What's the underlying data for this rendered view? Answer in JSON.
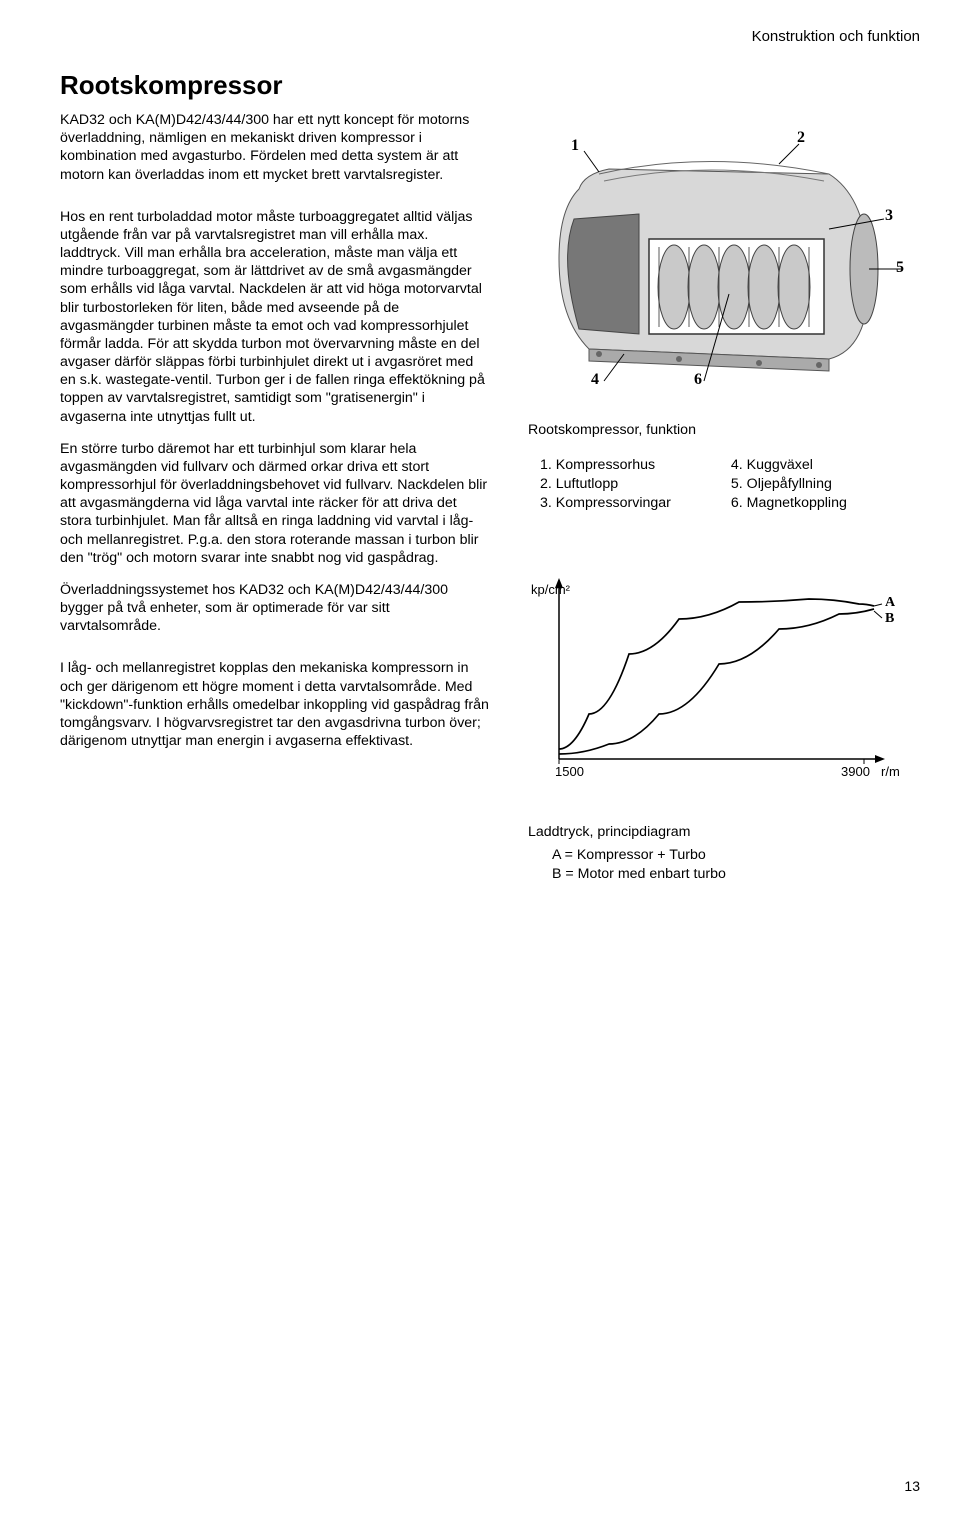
{
  "header": {
    "section": "Konstruktion och funktion"
  },
  "title": "Rootskompressor",
  "paragraphs": {
    "p1": "KAD32 och KA(M)D42/43/44/300 har ett nytt koncept för motorns överladdning, nämligen en mekaniskt driven kompressor i kombination med avgasturbo. Fördelen med detta system är att motorn kan överladdas inom ett mycket brett varvtalsregister.",
    "p2": "Hos en rent turboladdad motor måste turboaggregatet alltid väljas utgående från var på varvtalsregistret man vill erhålla max. laddtryck. Vill man erhålla bra acceleration, måste man välja ett mindre turboaggregat, som är lättdrivet av de små avgasmängder som erhålls vid låga varvtal. Nackdelen är att vid höga motorvarvtal blir turbostorleken för liten, både med avseende på de avgasmängder turbinen måste ta emot och vad kompressorhjulet förmår ladda. För att skydda turbon mot övervarvning måste en del avgaser därför släppas förbi turbinhjulet direkt ut i avgasröret med en s.k. wastegate-ventil. Turbon ger i de fallen ringa effektökning på toppen av varvtalsregistret, samtidigt som \"gratisenergin\" i avgaserna inte utnyttjas fullt ut.",
    "p3": "En större turbo däremot har ett turbinhjul som klarar hela avgasmängden vid fullvarv och därmed orkar driva ett stort kompressorhjul för överladdningsbehovet vid fullvarv. Nackdelen blir att avgasmängderna vid låga varvtal inte räcker för att driva det stora turbinhjulet. Man får alltså en ringa laddning vid varvtal i låg- och mellanregistret. P.g.a. den stora roterande massan i turbon blir den \"trög\" och motorn svarar inte snabbt nog vid gaspådrag.",
    "p4": "Överladdningssystemet hos KAD32 och KA(M)D42/43/44/300 bygger på två enheter, som är optimerade för var sitt varvtalsområde.",
    "p5": "I låg- och mellanregistret kopplas den mekaniska kompressorn in och ger därigenom ett högre moment i detta varvtalsområde. Med \"kickdown\"-funktion erhålls omedelbar inkoppling vid gaspådrag från tomgångsvarv. I högvarvsregistret tar den avgasdrivna turbon över; därigenom utnyttjar man energin i avgaserna effektivast."
  },
  "figure1": {
    "caption": "Rootskompressor, funktion",
    "callouts": [
      "1",
      "2",
      "3",
      "4",
      "5",
      "6"
    ],
    "parts_left": [
      "1. Kompressorhus",
      "2. Luftutlopp",
      "3. Kompressorvingar"
    ],
    "parts_right": [
      "4. Kuggväxel",
      "5. Oljepåfyllning",
      "6. Magnetkoppling"
    ]
  },
  "chart": {
    "caption": "Laddtryck, principdiagram",
    "legend_a": "A  = Kompressor + Turbo",
    "legend_b": "B = Motor med enbart turbo",
    "y_label": "kp/cm²",
    "x_min_label": "1500",
    "x_max_label": "3900",
    "x_unit": "r/m",
    "curve_labels": {
      "a": "A",
      "b": "B"
    },
    "curves": {
      "a": [
        [
          30,
          195
        ],
        [
          60,
          160
        ],
        [
          100,
          100
        ],
        [
          150,
          65
        ],
        [
          210,
          48
        ],
        [
          280,
          45
        ],
        [
          330,
          50
        ],
        [
          345,
          52
        ]
      ],
      "b": [
        [
          30,
          200
        ],
        [
          80,
          190
        ],
        [
          130,
          160
        ],
        [
          190,
          110
        ],
        [
          250,
          75
        ],
        [
          310,
          60
        ],
        [
          345,
          55
        ]
      ]
    },
    "colors": {
      "axis": "#000000",
      "curve": "#000000",
      "bg": "#ffffff"
    },
    "xlim": [
      30,
      345
    ],
    "ylim": [
      30,
      200
    ]
  },
  "footer": {
    "page": "13"
  }
}
